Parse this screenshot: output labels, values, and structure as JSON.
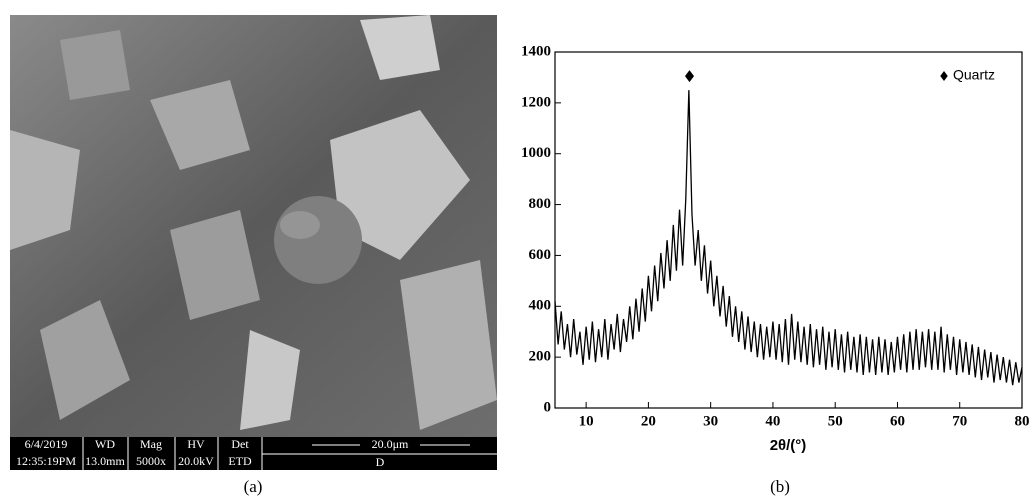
{
  "sem": {
    "info_bar": [
      {
        "top": "6/4/2019",
        "bottom": "12:35:19PM"
      },
      {
        "top": "WD",
        "bottom": "13.0mm"
      },
      {
        "top": "Mag",
        "bottom": "5000x"
      },
      {
        "top": "HV",
        "bottom": "20.0kV"
      },
      {
        "top": "Det",
        "bottom": "ETD"
      }
    ],
    "scale_bar": "20.0μm",
    "label": "D"
  },
  "captions": [
    "(a)",
    "(b)"
  ],
  "chart_data": {
    "type": "line",
    "xlabel": "2θ/(°)",
    "color": "#000000",
    "x": [
      5,
      5.5,
      6,
      6.5,
      7,
      7.5,
      8,
      8.5,
      9,
      9.5,
      10,
      10.5,
      11,
      11.5,
      12,
      12.5,
      13,
      13.5,
      14,
      14.5,
      15,
      15.5,
      16,
      16.5,
      17,
      17.5,
      18,
      18.5,
      19,
      19.5,
      20,
      20.5,
      21,
      21.5,
      22,
      22.5,
      23,
      23.5,
      24,
      24.5,
      25,
      25.5,
      26,
      26.5,
      27,
      27.5,
      28,
      28.5,
      29,
      29.5,
      30,
      30.5,
      31,
      31.5,
      32,
      32.5,
      33,
      33.5,
      34,
      34.5,
      35,
      35.5,
      36,
      36.5,
      37,
      37.5,
      38,
      38.5,
      39,
      39.5,
      40,
      40.5,
      41,
      41.5,
      42,
      42.5,
      43,
      43.5,
      44,
      44.5,
      45,
      45.5,
      46,
      46.5,
      47,
      47.5,
      48,
      48.5,
      49,
      49.5,
      50,
      50.5,
      51,
      51.5,
      52,
      52.5,
      53,
      53.5,
      54,
      54.5,
      55,
      55.5,
      56,
      56.5,
      57,
      57.5,
      58,
      58.5,
      59,
      59.5,
      60,
      60.5,
      61,
      61.5,
      62,
      62.5,
      63,
      63.5,
      64,
      64.5,
      65,
      65.5,
      66,
      66.5,
      67,
      67.5,
      68,
      68.5,
      69,
      69.5,
      70,
      70.5,
      71,
      71.5,
      72,
      72.5,
      73,
      73.5,
      74,
      74.5,
      75,
      75.5,
      76,
      76.5,
      77,
      77.5,
      78,
      78.5,
      79,
      79.5,
      80
    ],
    "values": [
      420,
      250,
      380,
      230,
      330,
      200,
      350,
      210,
      300,
      170,
      320,
      190,
      340,
      180,
      310,
      200,
      350,
      190,
      330,
      230,
      370,
      220,
      350,
      260,
      400,
      270,
      430,
      300,
      470,
      340,
      520,
      380,
      560,
      420,
      610,
      470,
      660,
      500,
      720,
      540,
      780,
      560,
      820,
      1250,
      760,
      560,
      700,
      500,
      640,
      450,
      580,
      400,
      520,
      360,
      480,
      320,
      440,
      280,
      400,
      260,
      380,
      230,
      360,
      220,
      340,
      200,
      330,
      190,
      320,
      200,
      340,
      190,
      330,
      180,
      350,
      170,
      370,
      190,
      340,
      180,
      320,
      170,
      330,
      160,
      310,
      170,
      320,
      150,
      300,
      160,
      310,
      150,
      290,
      140,
      300,
      150,
      280,
      140,
      290,
      130,
      280,
      140,
      270,
      130,
      280,
      140,
      270,
      130,
      260,
      140,
      280,
      150,
      290,
      140,
      300,
      150,
      310,
      150,
      300,
      160,
      310,
      150,
      300,
      150,
      320,
      140,
      290,
      150,
      280,
      130,
      270,
      140,
      260,
      130,
      250,
      120,
      240,
      110,
      230,
      120,
      220,
      100,
      210,
      110,
      200,
      100,
      190,
      90,
      180,
      100,
      160
    ],
    "peaks": {
      "name": "Quartz",
      "marker": "diamond",
      "x": [
        26.6
      ],
      "y": [
        1305
      ]
    },
    "legend": "upper right",
    "xlim": [
      5,
      80
    ],
    "xticks": [
      10,
      20,
      30,
      40,
      50,
      60,
      70,
      80
    ],
    "ylim": [
      0,
      1400
    ],
    "yticks": [
      0,
      200,
      400,
      600,
      800,
      1000,
      1200,
      1400
    ]
  }
}
